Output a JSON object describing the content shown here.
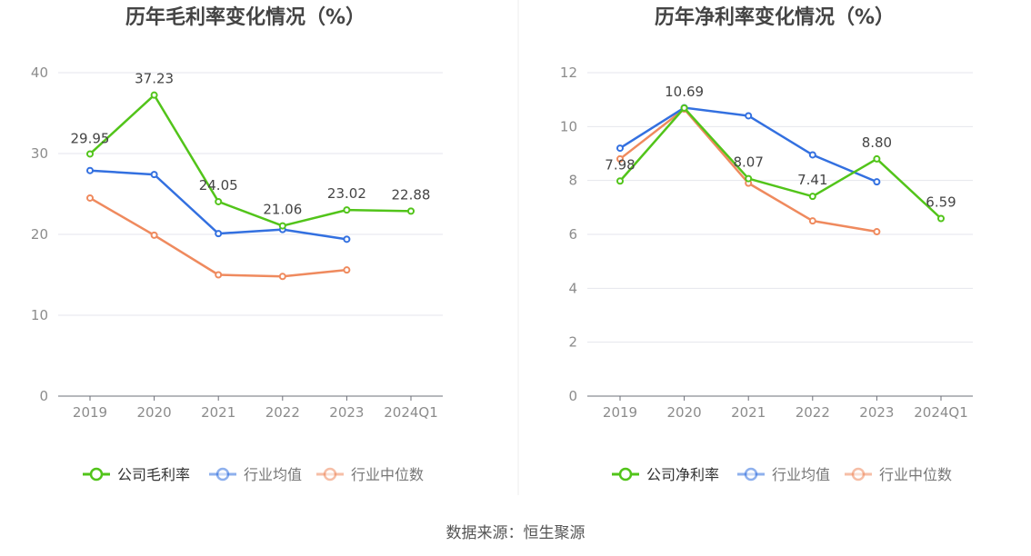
{
  "colors": {
    "company": "#52c41a",
    "industry_avg": "#3370e0",
    "industry_median": "#ef8a5e",
    "grid": "#e4e6ec",
    "axis": "#6e7079",
    "tick_text": "#8c8c8c"
  },
  "chart_data": [
    {
      "type": "line",
      "title": "历年毛利率变化情况（%）",
      "categories": [
        "2019",
        "2020",
        "2021",
        "2022",
        "2023",
        "2024Q1"
      ],
      "ylim": [
        0,
        40
      ],
      "yticks": [
        0,
        10,
        20,
        30,
        40
      ],
      "yticklabels": [
        "0",
        "10",
        "20",
        "30",
        "40"
      ],
      "grid": true,
      "legend_position": "bottom",
      "series": [
        {
          "name": "公司毛利率",
          "color_key": "company",
          "values": [
            29.95,
            37.23,
            24.05,
            21.06,
            23.02,
            22.88
          ],
          "labels": [
            "29.95",
            "37.23",
            "24.05",
            "21.06",
            "23.02",
            "22.88"
          ]
        },
        {
          "name": "行业均值",
          "color_key": "industry_avg",
          "values": [
            27.9,
            27.4,
            20.1,
            20.6,
            19.4,
            null
          ]
        },
        {
          "name": "行业中位数",
          "color_key": "industry_median",
          "values": [
            24.5,
            19.9,
            15.0,
            14.8,
            15.6,
            null
          ]
        }
      ]
    },
    {
      "type": "line",
      "title": "历年净利率变化情况（%）",
      "categories": [
        "2019",
        "2020",
        "2021",
        "2022",
        "2023",
        "2024Q1"
      ],
      "ylim": [
        0,
        12
      ],
      "yticks": [
        0,
        2,
        4,
        6,
        8,
        10,
        12
      ],
      "yticklabels": [
        "0",
        "2",
        "4",
        "6",
        "8",
        "10",
        "12"
      ],
      "grid": true,
      "legend_position": "bottom",
      "series": [
        {
          "name": "公司净利率",
          "color_key": "company",
          "values": [
            7.98,
            10.69,
            8.07,
            7.41,
            8.8,
            6.59
          ],
          "labels": [
            "7.98",
            "10.69",
            "8.07",
            "7.41",
            "8.80",
            "6.59"
          ]
        },
        {
          "name": "行业均值",
          "color_key": "industry_avg",
          "values": [
            9.2,
            10.7,
            10.4,
            8.95,
            7.95,
            null
          ]
        },
        {
          "name": "行业中位数",
          "color_key": "industry_median",
          "values": [
            8.8,
            10.65,
            7.9,
            6.5,
            6.1,
            null
          ]
        }
      ]
    }
  ],
  "footer": {
    "source": "数据来源：恒生聚源"
  }
}
